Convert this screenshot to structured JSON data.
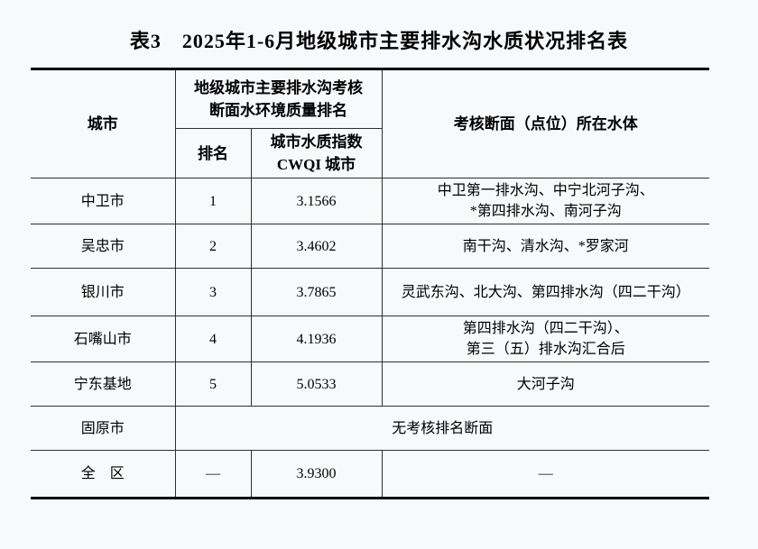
{
  "page": {
    "background_color": "#f8f9fb",
    "rule_thin_color": "#2f2f2f",
    "rule_thick_color": "#000000"
  },
  "title": "表3　2025年1-6月地级城市主要排水沟水质状况排名表",
  "table": {
    "headers": {
      "city": "城市",
      "group": "地级城市主要排水沟考核\n断面水环境质量排名",
      "rank": "排名",
      "cwqi": "城市水质指数\nCWQI 城市",
      "water_body": "考核断面（点位）所在水体"
    },
    "rows": [
      {
        "city": "中卫市",
        "rank": "1",
        "cwqi": "3.1566",
        "water_body": "中卫第一排水沟、中宁北河子沟、\n*第四排水沟、南河子沟"
      },
      {
        "city": "吴忠市",
        "rank": "2",
        "cwqi": "3.4602",
        "water_body": "南干沟、清水沟、*罗家河"
      },
      {
        "city": "银川市",
        "rank": "3",
        "cwqi": "3.7865",
        "water_body": "灵武东沟、北大沟、第四排水沟（四二干沟）"
      },
      {
        "city": "石嘴山市",
        "rank": "4",
        "cwqi": "4.1936",
        "water_body": "第四排水沟（四二干沟）、\n第三（五）排水沟汇合后"
      },
      {
        "city": "宁东基地",
        "rank": "5",
        "cwqi": "5.0533",
        "water_body": "大河子沟"
      },
      {
        "city": "固原市",
        "merged_text": "无考核排名断面"
      },
      {
        "city": "全　区",
        "rank": "—",
        "cwqi": "3.9300",
        "water_body": "—"
      }
    ]
  }
}
